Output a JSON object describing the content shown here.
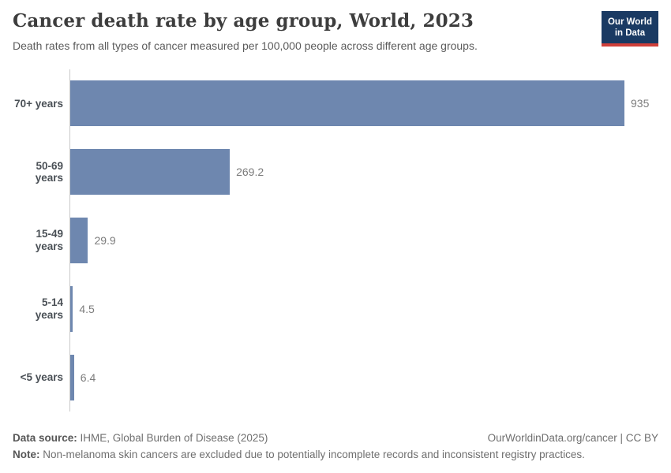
{
  "header": {
    "title": "Cancer death rate by age group, World, 2023",
    "subtitle": "Death rates from all types of cancer measured per 100,000 people across different age groups.",
    "logo": {
      "line1": "Our World",
      "line2": "in Data",
      "bg_color": "#1a3a63",
      "accent_color": "#d0403a"
    }
  },
  "chart_data": {
    "type": "bar",
    "orientation": "horizontal",
    "title": "Cancer death rate by age group, World, 2023",
    "subtitle": "Death rates from all types of cancer measured per 100,000 people across different age groups.",
    "categories": [
      "70+ years",
      "50-69 years",
      "15-49 years",
      "5-14 years",
      "<5 years"
    ],
    "values": [
      935,
      269.2,
      29.9,
      4.5,
      6.4
    ],
    "value_labels": [
      "935",
      "269.2",
      "29.9",
      "4.5",
      "6.4"
    ],
    "unit": "deaths per 100,000 people",
    "xlim": [
      0,
      935
    ],
    "grid": false,
    "legend": "none",
    "bar_color": "#6e87af",
    "axis_line_color": "#c9c9c9"
  },
  "footer": {
    "source_label": "Data source:",
    "source_text": " IHME, Global Burden of Disease (2025)",
    "link_text": "OurWorldinData.org/cancer",
    "license_separator": " | ",
    "license_text": "CC BY",
    "note_label": "Note:",
    "note_text": " Non-melanoma skin cancers are excluded due to potentially incomplete records and inconsistent registry practices."
  }
}
